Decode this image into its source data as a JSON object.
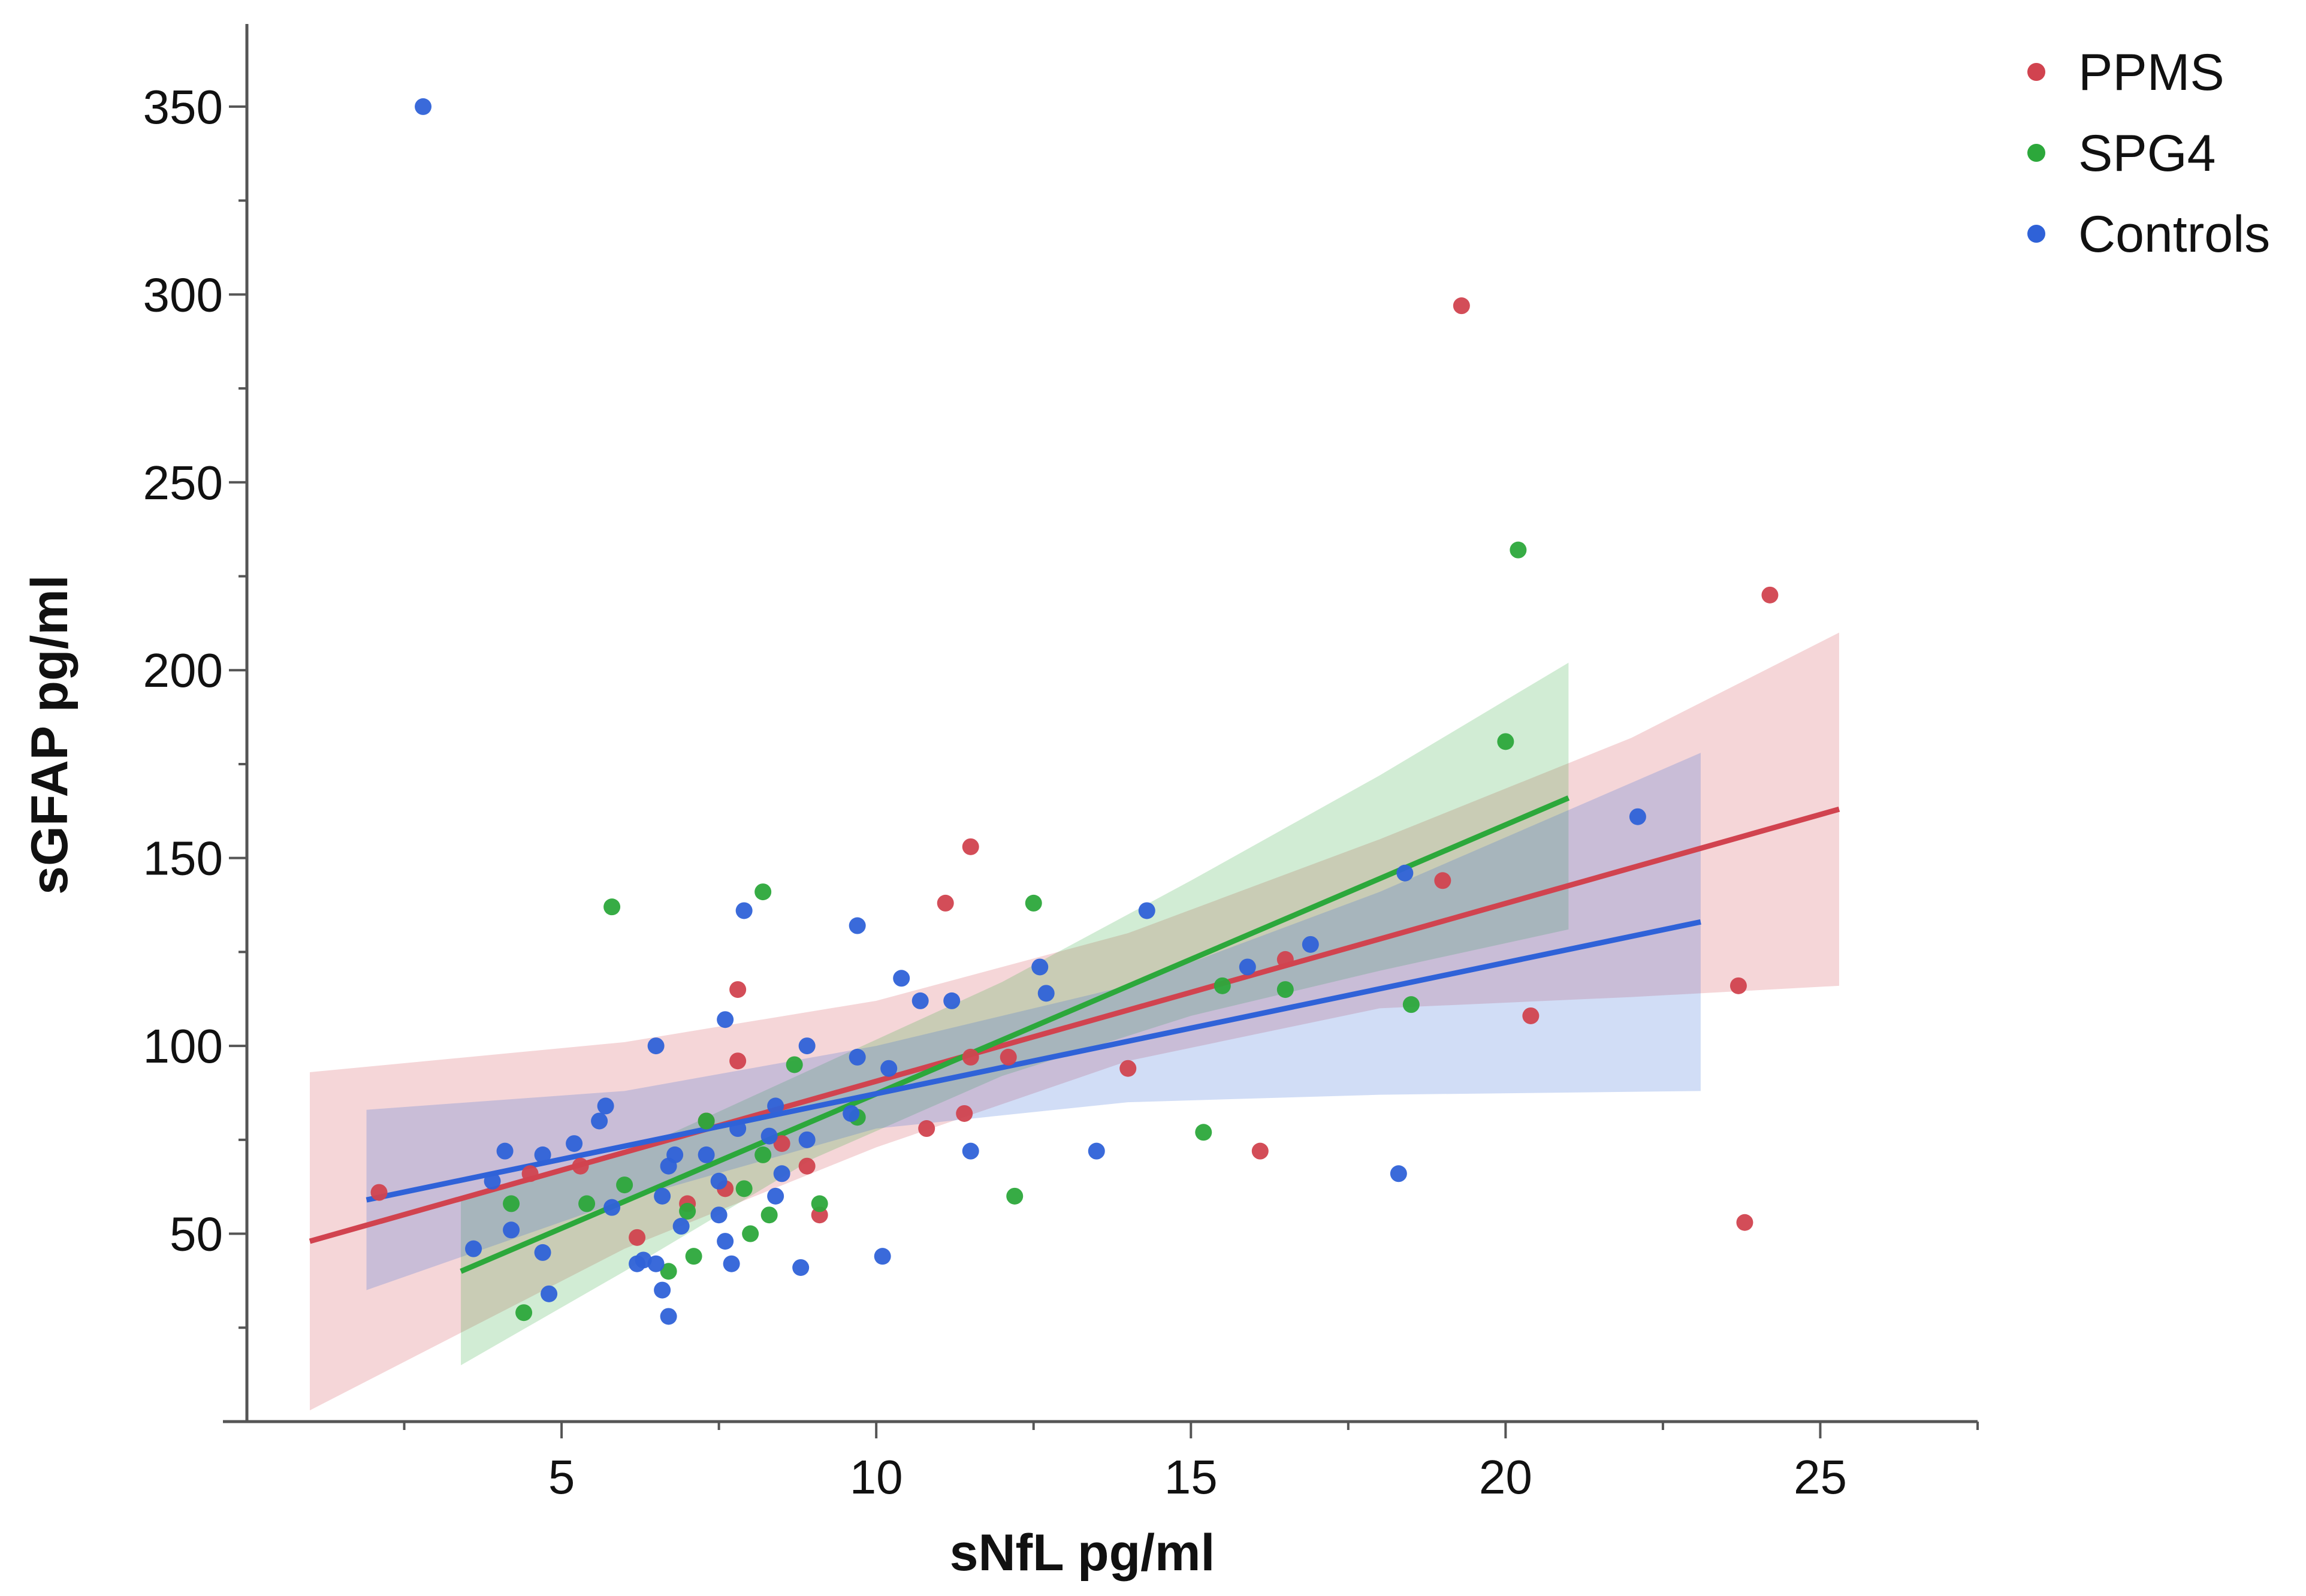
{
  "chart_data": {
    "type": "scatter",
    "title": "",
    "xlabel": "sNfL pg/ml",
    "ylabel": "sGFAP pg/ml",
    "xlim": [
      0,
      27.5
    ],
    "ylim": [
      0,
      372
    ],
    "xticks": [
      5,
      10,
      15,
      20,
      25
    ],
    "xtick_labels": [
      "5",
      "10",
      "15",
      "20",
      "25"
    ],
    "yticks": [
      50,
      100,
      150,
      200,
      250,
      300,
      350
    ],
    "ytick_labels": [
      "50",
      "100",
      "150",
      "200",
      "250",
      "300",
      "350"
    ],
    "grid": false,
    "legend_position": "top-right",
    "series": [
      {
        "name": "PPMS",
        "color": "#d1434f",
        "points": [
          [
            2.1,
            61
          ],
          [
            4.5,
            66
          ],
          [
            5.3,
            68
          ],
          [
            6.2,
            49
          ],
          [
            7.0,
            58
          ],
          [
            7.3,
            80
          ],
          [
            7.6,
            62
          ],
          [
            7.8,
            96
          ],
          [
            7.8,
            115
          ],
          [
            8.5,
            74
          ],
          [
            8.9,
            68
          ],
          [
            9.1,
            55
          ],
          [
            10.8,
            78
          ],
          [
            11.1,
            138
          ],
          [
            11.4,
            82
          ],
          [
            11.5,
            153
          ],
          [
            11.5,
            97
          ],
          [
            12.1,
            97
          ],
          [
            14.0,
            94
          ],
          [
            16.1,
            72
          ],
          [
            16.5,
            123
          ],
          [
            19.0,
            144
          ],
          [
            19.3,
            297
          ],
          [
            20.4,
            108
          ],
          [
            23.7,
            116
          ],
          [
            23.8,
            53
          ],
          [
            24.2,
            220
          ]
        ],
        "fit": {
          "x": [
            1.0,
            25.3
          ],
          "y": [
            48,
            163
          ]
        },
        "ci_upper": {
          "x": [
            1.0,
            6.0,
            10.0,
            14.0,
            18.0,
            22.0,
            25.3
          ],
          "y": [
            93,
            101,
            112,
            130,
            155,
            182,
            210
          ]
        },
        "ci_lower": {
          "x": [
            1.0,
            6.0,
            10.0,
            14.0,
            18.0,
            22.0,
            25.3
          ],
          "y": [
            3,
            46,
            73,
            96,
            110,
            113,
            116
          ]
        }
      },
      {
        "name": "SPG4",
        "color": "#2ca83b",
        "points": [
          [
            4.2,
            58
          ],
          [
            4.4,
            29
          ],
          [
            5.4,
            58
          ],
          [
            5.8,
            137
          ],
          [
            6.0,
            63
          ],
          [
            6.7,
            40
          ],
          [
            7.0,
            56
          ],
          [
            7.1,
            44
          ],
          [
            7.3,
            80
          ],
          [
            7.9,
            62
          ],
          [
            8.0,
            50
          ],
          [
            8.2,
            71
          ],
          [
            8.2,
            141
          ],
          [
            8.3,
            55
          ],
          [
            8.7,
            95
          ],
          [
            9.1,
            58
          ],
          [
            9.7,
            81
          ],
          [
            12.2,
            60
          ],
          [
            12.5,
            138
          ],
          [
            15.2,
            77
          ],
          [
            15.5,
            116
          ],
          [
            16.5,
            115
          ],
          [
            18.5,
            111
          ],
          [
            20.0,
            181
          ],
          [
            20.2,
            232
          ]
        ],
        "fit": {
          "x": [
            3.4,
            21.0
          ],
          "y": [
            40,
            166
          ]
        },
        "ci_upper": {
          "x": [
            3.4,
            6.0,
            9.0,
            12.0,
            15.0,
            18.0,
            21.0
          ],
          "y": [
            60,
            71,
            94,
            117,
            144,
            172,
            202
          ]
        },
        "ci_lower": {
          "x": [
            3.4,
            6.0,
            9.0,
            12.0,
            15.0,
            18.0,
            21.0
          ],
          "y": [
            15,
            40,
            70,
            92,
            108,
            120,
            131
          ]
        }
      },
      {
        "name": "Controls",
        "color": "#2f62d8",
        "points": [
          [
            2.8,
            350
          ],
          [
            3.6,
            46
          ],
          [
            3.9,
            64
          ],
          [
            4.1,
            72
          ],
          [
            4.2,
            51
          ],
          [
            4.7,
            71
          ],
          [
            4.7,
            45
          ],
          [
            4.8,
            34
          ],
          [
            5.2,
            74
          ],
          [
            5.6,
            80
          ],
          [
            5.7,
            84
          ],
          [
            5.8,
            57
          ],
          [
            6.2,
            42
          ],
          [
            6.3,
            43
          ],
          [
            6.5,
            42
          ],
          [
            6.5,
            100
          ],
          [
            6.6,
            60
          ],
          [
            6.6,
            35
          ],
          [
            6.7,
            28
          ],
          [
            6.7,
            68
          ],
          [
            6.8,
            71
          ],
          [
            6.9,
            52
          ],
          [
            7.3,
            71
          ],
          [
            7.5,
            64
          ],
          [
            7.5,
            55
          ],
          [
            7.6,
            107
          ],
          [
            7.6,
            48
          ],
          [
            7.7,
            42
          ],
          [
            7.8,
            78
          ],
          [
            7.9,
            136
          ],
          [
            8.3,
            76
          ],
          [
            8.4,
            60
          ],
          [
            8.4,
            84
          ],
          [
            8.5,
            66
          ],
          [
            8.8,
            41
          ],
          [
            8.9,
            75
          ],
          [
            8.9,
            100
          ],
          [
            9.6,
            82
          ],
          [
            9.7,
            132
          ],
          [
            9.7,
            97
          ],
          [
            10.1,
            44
          ],
          [
            10.2,
            94
          ],
          [
            10.4,
            118
          ],
          [
            10.7,
            112
          ],
          [
            11.2,
            112
          ],
          [
            11.5,
            72
          ],
          [
            12.6,
            121
          ],
          [
            12.7,
            114
          ],
          [
            13.5,
            72
          ],
          [
            14.3,
            136
          ],
          [
            15.9,
            121
          ],
          [
            16.9,
            127
          ],
          [
            18.3,
            66
          ],
          [
            18.4,
            146
          ],
          [
            22.1,
            161
          ]
        ],
        "fit": {
          "x": [
            1.9,
            23.1
          ],
          "y": [
            59,
            133
          ]
        },
        "ci_upper": {
          "x": [
            1.9,
            6.0,
            10.0,
            14.0,
            18.0,
            23.1
          ],
          "y": [
            83,
            88,
            100,
            116,
            141,
            178
          ]
        },
        "ci_lower": {
          "x": [
            1.9,
            6.0,
            10.0,
            14.0,
            18.0,
            23.1
          ],
          "y": [
            35,
            59,
            78,
            85,
            87,
            88
          ]
        }
      }
    ]
  }
}
